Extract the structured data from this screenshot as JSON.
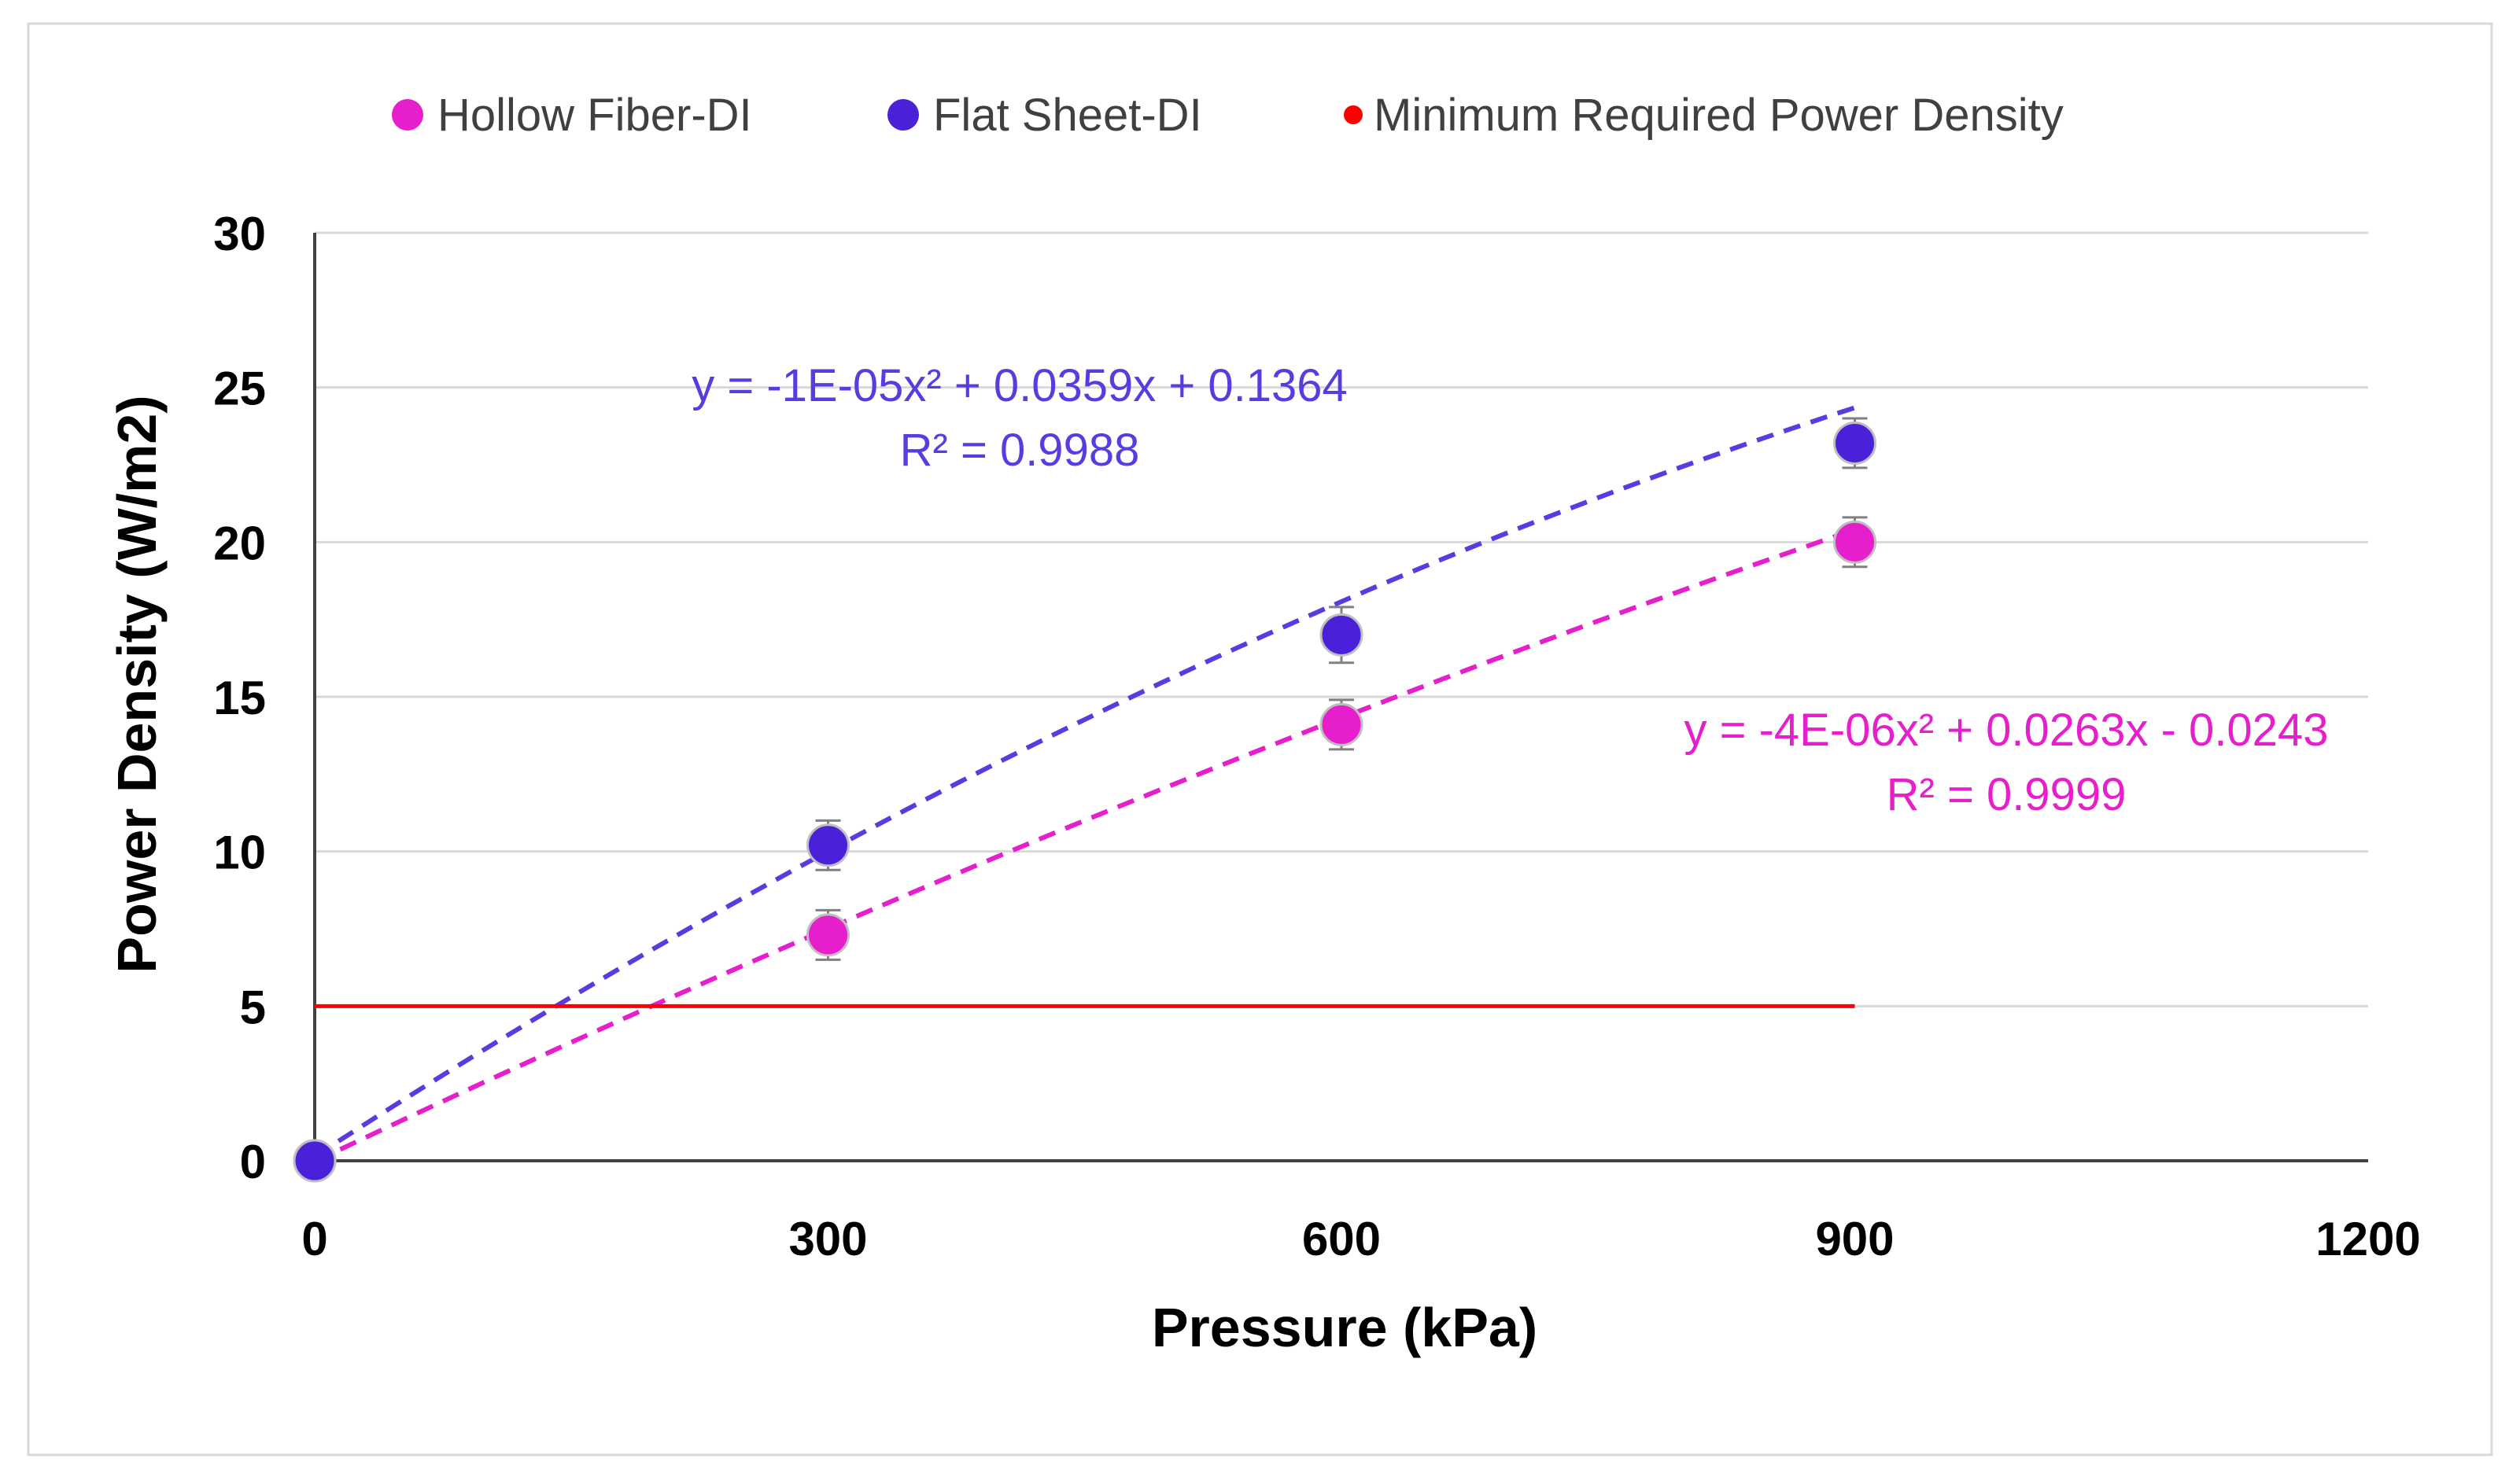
{
  "chart_data": {
    "type": "scatter",
    "title": "",
    "xlabel": "Pressure (kPa)",
    "ylabel": "Power Density (W/m2)",
    "xlim": [
      0,
      1200
    ],
    "ylim": [
      0,
      30
    ],
    "x_ticks": [
      0,
      300,
      600,
      900,
      1200
    ],
    "y_ticks": [
      0,
      5,
      10,
      15,
      20,
      25,
      30
    ],
    "grid": "horizontal",
    "legend_position": "top",
    "series": [
      {
        "name": "Hollow Fiber-DI",
        "color": "#e61ecb",
        "x": [
          0,
          300,
          600,
          900
        ],
        "y": [
          0,
          7.3,
          14.1,
          20.0
        ],
        "error": [
          0,
          0.8,
          0.8,
          0.8
        ],
        "trendline": {
          "type": "polynomial-2",
          "coefficients": [
            -4e-06,
            0.0263,
            -0.0243
          ],
          "equation_text": "y = -4E-06x² + 0.0263x - 0.0243",
          "r2_text": "R² = 0.9999",
          "color": "#e61ecb"
        }
      },
      {
        "name": "Flat Sheet-DI",
        "color": "#4a20d8",
        "x": [
          0,
          300,
          600,
          900
        ],
        "y": [
          0,
          10.2,
          17.0,
          23.2
        ],
        "error": [
          0,
          0.8,
          0.9,
          0.8
        ],
        "trendline": {
          "type": "polynomial-2",
          "coefficients": [
            -1e-05,
            0.0359,
            0.1364
          ],
          "equation_text": "y = -1E-05x² + 0.0359x + 0.1364",
          "r2_text": "R² = 0.9988",
          "color": "#5a3be0"
        }
      },
      {
        "name": "Minimum Required Power Density",
        "color": "#ff0000",
        "type": "line",
        "x": [
          0,
          900
        ],
        "y": [
          5,
          5
        ]
      }
    ]
  }
}
